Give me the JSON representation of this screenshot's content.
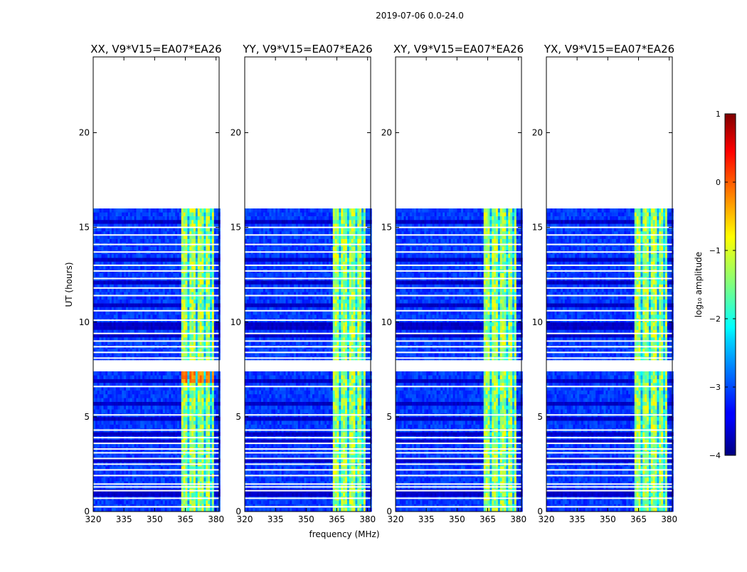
{
  "figure": {
    "suptitle": "2019-07-06 0.0-24.0",
    "xlabel": "frequency (MHz)",
    "ylabel": "UT (hours)"
  },
  "colors": {
    "white": "#ffffff",
    "axis": "#000000",
    "background": "#00007f"
  },
  "chart_data": {
    "type": "heatmap",
    "panels": [
      {
        "title": "XX, V9*V15=EA07*EA26",
        "band_shift_mhz": 0
      },
      {
        "title": "YY, V9*V15=EA07*EA26",
        "band_shift_mhz": 0
      },
      {
        "title": "XY, V9*V15=EA07*EA26",
        "band_shift_mhz": 0
      },
      {
        "title": "YX, V9*V15=EA07*EA26",
        "band_shift_mhz": 0
      }
    ],
    "xlim": [
      320,
      381.5
    ],
    "ylim": [
      0,
      24
    ],
    "xticks": [
      320,
      335,
      350,
      365,
      380
    ],
    "xtick_labels": [
      "320",
      "335",
      "350",
      "365",
      "380"
    ],
    "yticks": [
      0,
      5,
      10,
      15,
      20
    ],
    "ytick_labels": [
      "0",
      "5",
      "10",
      "15",
      "20"
    ],
    "data_end_ut": 15.8,
    "gap_ut": [
      7.45,
      7.95
    ],
    "flagged_rows_ut": [
      15.0,
      14.6,
      14.1,
      13.7,
      13.0,
      12.7,
      12.3,
      11.8,
      11.4,
      10.6,
      10.1,
      9.4,
      9.0,
      8.7,
      8.4,
      8.1,
      6.6,
      5.1,
      4.3,
      3.9,
      3.6,
      3.3,
      3.1,
      2.8,
      2.5,
      2.2,
      1.9,
      1.45,
      1.3,
      1.1,
      0.7,
      0.25
    ],
    "dark_rows_ut": [
      15.2,
      13.2,
      12.0,
      10.8,
      9.8,
      9.6,
      9.2,
      6.9,
      5.6,
      4.9,
      4.1,
      4.0,
      3.7,
      2.6,
      0.9
    ],
    "signal_band_mhz": [
      362.5,
      378.5
    ],
    "signal_columns_mhz": [
      [
        362.5,
        366.0
      ],
      [
        367.0,
        369.5
      ],
      [
        371.0,
        373.5
      ],
      [
        375.0,
        377.0
      ],
      [
        377.5,
        378.5
      ]
    ],
    "colorbar": {
      "label": "log₁₀ amplitude",
      "min": -4,
      "max": 1,
      "ticks": [
        1,
        0,
        -1,
        -2,
        -3,
        -4
      ],
      "tick_labels": [
        "1",
        "0",
        "−1",
        "−2",
        "−3",
        "−4"
      ],
      "colormap": "jet"
    }
  }
}
